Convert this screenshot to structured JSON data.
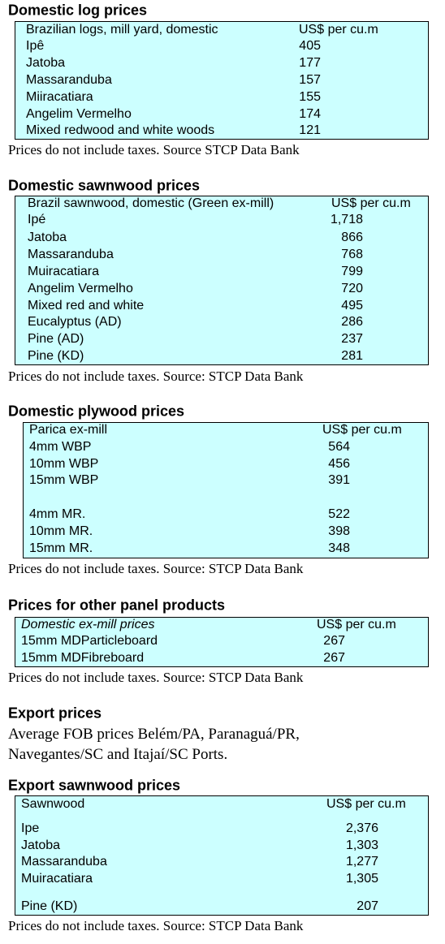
{
  "sections": [
    {
      "title": "Domestic log prices",
      "table": {
        "header": [
          "Brazilian logs, mill yard, domestic",
          "US$ per cu.m"
        ],
        "rows": [
          [
            "Ipê",
            "405"
          ],
          [
            "Jatoba",
            "177"
          ],
          [
            "Massaranduba",
            "157"
          ],
          [
            "Miiracatiara",
            "155"
          ],
          [
            "Angelim Vermelho",
            "174"
          ],
          [
            "Mixed redwood and white woods",
            "121"
          ]
        ]
      },
      "note": "Prices do not include taxes. Source STCP Data Bank"
    },
    {
      "title": "Domestic sawnwood prices",
      "table": {
        "header": [
          "Brazil sawnwood, domestic (Green ex-mill)",
          "US$ per cu.m"
        ],
        "rows": [
          [
            "Ipé",
            "1,718"
          ],
          [
            "Jatoba",
            "866"
          ],
          [
            "Massaranduba",
            "768"
          ],
          [
            "Muiracatiara",
            "799"
          ],
          [
            "Angelim Vermelho",
            "720"
          ],
          [
            "Mixed red and white",
            "495"
          ],
          [
            "Eucalyptus (AD)",
            "286"
          ],
          [
            "Pine (AD)",
            "237"
          ],
          [
            "Pine (KD)",
            "281"
          ]
        ]
      },
      "note": "Prices do not include taxes. Source: STCP Data Bank"
    },
    {
      "title": "Domestic plywood prices",
      "table": {
        "header": [
          "Parica ex-mill",
          "US$ per cu.m"
        ],
        "rows": [
          [
            "4mm WBP",
            "564"
          ],
          [
            "10mm WBP",
            "456"
          ],
          [
            "15mm WBP",
            "391"
          ],
          [
            "4mm MR.",
            "522"
          ],
          [
            "10mm MR.",
            "398"
          ],
          [
            "15mm MR.",
            "348"
          ]
        ]
      },
      "note": "Prices do not include taxes. Source: STCP Data Bank"
    },
    {
      "title": "Prices for other panel products",
      "table": {
        "header": [
          "Domestic ex-mill prices",
          "US$ per cu.m"
        ],
        "rows": [
          [
            "15mm MDParticleboard",
            "267"
          ],
          [
            "15mm MDFibreboard",
            "267"
          ]
        ]
      },
      "note": "Prices do not include taxes. Source: STCP Data Bank"
    },
    {
      "title": "Export prices",
      "paragraph": [
        "Average FOB prices Belém/PA, Paranaguá/PR,",
        "Navegantes/SC and Itajaí/SC Ports."
      ]
    },
    {
      "title": "Export sawnwood prices",
      "table": {
        "header": [
          "Sawnwood",
          "US$ per cu.m"
        ],
        "rows": [
          [
            "Ipe",
            "2,376"
          ],
          [
            "Jatoba",
            "1,303"
          ],
          [
            "Massaranduba",
            "1,277"
          ],
          [
            "Muiracatiara",
            "1,305"
          ],
          [
            "Pine (KD)",
            "207"
          ]
        ]
      },
      "note": "Prices do not include taxes. Source: STCP Data Bank"
    }
  ]
}
